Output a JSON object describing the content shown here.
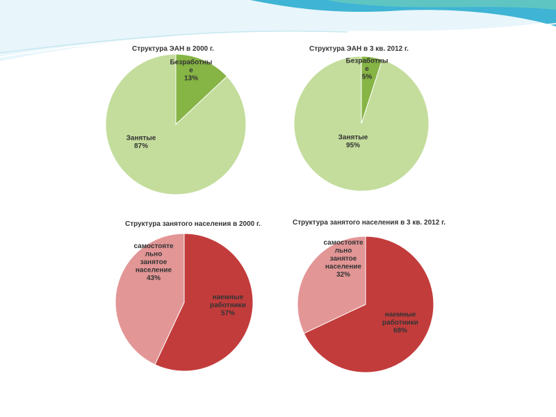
{
  "slide": {
    "palette": {
      "green_main": "#c4dd9c",
      "green_minor": "#86b445",
      "red_main": "#c33c3c",
      "red_minor": "#e39696",
      "header_light": "#e8f6fb",
      "header_blue": "#3fb4d4",
      "header_teal": "#64c8bf"
    }
  },
  "chart_data": [
    {
      "type": "pie",
      "title": "Структура ЭАН в 2000 г.",
      "slices": [
        {
          "label_lines": [
            "Безработны",
            "е",
            "13%"
          ],
          "value": 13
        },
        {
          "label_lines": [
            "Занятые",
            "87%"
          ],
          "value": 87
        }
      ]
    },
    {
      "type": "pie",
      "title": "Структура ЭАН в 3 кв. 2012 г.",
      "slices": [
        {
          "label_lines": [
            "Безработны",
            "е",
            "5%"
          ],
          "value": 5
        },
        {
          "label_lines": [
            "Занятые",
            "95%"
          ],
          "value": 95
        }
      ]
    },
    {
      "type": "pie",
      "title": "Структура занятого населения в 2000 г.",
      "slices": [
        {
          "label_lines": [
            "наемные",
            "работники",
            "57%"
          ],
          "value": 57
        },
        {
          "label_lines": [
            "самостояте",
            "льно",
            "занятое",
            "население",
            "43%"
          ],
          "value": 43
        }
      ]
    },
    {
      "type": "pie",
      "title": "Структура занятого населения в 3 кв. 2012 г.",
      "slices": [
        {
          "label_lines": [
            "наемные",
            "работники",
            "68%"
          ],
          "value": 68
        },
        {
          "label_lines": [
            "самостояте",
            "льно",
            "занятое",
            "население",
            "32%"
          ],
          "value": 32
        }
      ]
    }
  ]
}
